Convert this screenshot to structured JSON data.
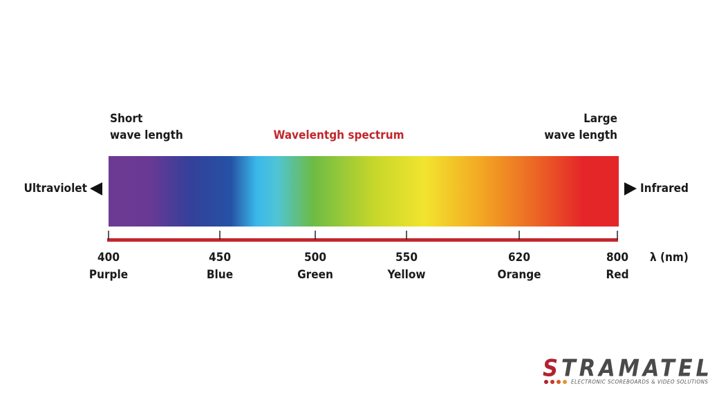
{
  "title": "Wavelentgh spectrum",
  "left": {
    "heading": [
      "Short",
      "wave length"
    ],
    "side": "Ultraviolet"
  },
  "right": {
    "heading": [
      "Large",
      "wave length"
    ],
    "side": "Infrared"
  },
  "unit": "λ (nm)",
  "ticks": [
    {
      "value": "400",
      "name": "Purple"
    },
    {
      "value": "450",
      "name": "Blue"
    },
    {
      "value": "500",
      "name": "Green"
    },
    {
      "value": "550",
      "name": "Yellow"
    },
    {
      "value": "620",
      "name": "Orange"
    },
    {
      "value": "800",
      "name": "Red"
    }
  ],
  "logo": {
    "brand": "STRAMATEL",
    "tagline": "ELECTRONIC SCOREBOARDS & VIDEO SOLUTIONS"
  }
}
